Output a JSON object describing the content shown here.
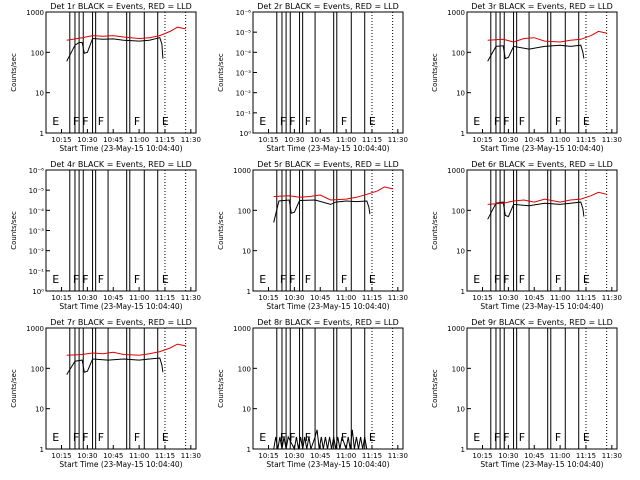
{
  "chart_data": [
    {
      "type": "line",
      "title": "Det 1r  BLACK = Events, RED = LLD",
      "xlabel": "Start Time (23-May-15 10:04:40)",
      "ylabel": "Counts/sec",
      "yscale": "log",
      "ylim": [
        1,
        1000
      ],
      "yticks": [
        "1",
        "10",
        "100",
        "1000"
      ],
      "xticks": [
        "10:15",
        "10:30",
        "10:45",
        "11:00",
        "11:15",
        "11:30"
      ],
      "flags": [
        "E",
        "F",
        "F",
        "F",
        "F",
        "E"
      ],
      "series": [
        {
          "values": [
            [
              10.3,
              60
            ],
            [
              10.38,
              150
            ],
            [
              10.42,
              175
            ],
            [
              10.45,
              175
            ],
            [
              10.47,
              95
            ],
            [
              10.5,
              100
            ],
            [
              10.55,
              220
            ],
            [
              10.65,
              210
            ],
            [
              10.75,
              215
            ],
            [
              10.85,
              200
            ],
            [
              11.0,
              190
            ],
            [
              11.1,
              200
            ],
            [
              11.2,
              230
            ],
            [
              11.22,
              160
            ],
            [
              11.23,
              70
            ]
          ]
        },
        {
          "values": [
            [
              10.3,
              200
            ],
            [
              10.45,
              230
            ],
            [
              10.55,
              260
            ],
            [
              10.65,
              250
            ],
            [
              10.75,
              260
            ],
            [
              10.85,
              240
            ],
            [
              11.0,
              220
            ],
            [
              11.1,
              230
            ],
            [
              11.2,
              260
            ],
            [
              11.3,
              330
            ],
            [
              11.37,
              420
            ],
            [
              11.45,
              380
            ]
          ]
        }
      ]
    },
    {
      "type": "line",
      "title": "Det 2r  BLACK = Events, RED = LLD",
      "xlabel": "Start Time (23-May-15 10:04:40)",
      "ylabel": "Counts/sec",
      "yscale": "log",
      "yticks": [
        "10⁰",
        "10⁻¹",
        "10⁻²",
        "10⁻³",
        "10⁻⁴",
        "10⁻⁵",
        "10⁻⁶"
      ],
      "xticks": [
        "10:15",
        "10:30",
        "10:45",
        "11:00",
        "11:15",
        "11:30"
      ],
      "flags": [
        "E",
        "F",
        "F",
        "F",
        "F",
        "E"
      ],
      "series": []
    },
    {
      "type": "line",
      "title": "Det 3r  BLACK = Events, RED = LLD",
      "xlabel": "Start Time (23-May-15 10:04:40)",
      "ylabel": "Counts/sec",
      "yscale": "log",
      "ylim": [
        1,
        1000
      ],
      "yticks": [
        "1",
        "10",
        "100",
        "1000"
      ],
      "xticks": [
        "10:15",
        "10:30",
        "10:45",
        "11:00",
        "11:15",
        "11:30"
      ],
      "flags": [
        "E",
        "F",
        "F",
        "F",
        "F",
        "E"
      ],
      "series": [
        {
          "values": [
            [
              10.3,
              60
            ],
            [
              10.38,
              140
            ],
            [
              10.45,
              145
            ],
            [
              10.47,
              70
            ],
            [
              10.5,
              75
            ],
            [
              10.55,
              140
            ],
            [
              10.7,
              120
            ],
            [
              10.85,
              140
            ],
            [
              11.0,
              150
            ],
            [
              11.1,
              140
            ],
            [
              11.2,
              150
            ],
            [
              11.22,
              100
            ],
            [
              11.23,
              70
            ]
          ]
        },
        {
          "values": [
            [
              10.3,
              200
            ],
            [
              10.45,
              210
            ],
            [
              10.55,
              180
            ],
            [
              10.65,
              220
            ],
            [
              10.75,
              230
            ],
            [
              10.85,
              190
            ],
            [
              11.0,
              180
            ],
            [
              11.1,
              200
            ],
            [
              11.2,
              210
            ],
            [
              11.3,
              260
            ],
            [
              11.37,
              330
            ],
            [
              11.45,
              300
            ]
          ]
        }
      ]
    },
    {
      "type": "line",
      "title": "Det 4r  BLACK = Events, RED = LLD",
      "xlabel": "Start Time (23-May-15 10:04:40)",
      "ylabel": "Counts/sec",
      "yscale": "log",
      "yticks": [
        "10⁰",
        "10⁻¹",
        "10⁻²",
        "10⁻³",
        "10⁻⁴",
        "10⁻⁵",
        "10⁻⁶"
      ],
      "xticks": [
        "10:15",
        "10:30",
        "10:45",
        "11:00",
        "11:15",
        "11:30"
      ],
      "flags": [
        "E",
        "F",
        "F",
        "F",
        "F",
        "E"
      ],
      "series": []
    },
    {
      "type": "line",
      "title": "Det 5r  BLACK = Events, RED = LLD",
      "xlabel": "Start Time (23-May-15 10:04:40)",
      "ylabel": "Counts/sec",
      "yscale": "log",
      "ylim": [
        1,
        1000
      ],
      "yticks": [
        "1",
        "10",
        "100",
        "1000"
      ],
      "xticks": [
        "10:15",
        "10:30",
        "10:45",
        "11:00",
        "11:15",
        "11:30"
      ],
      "flags": [
        "E",
        "F",
        "F",
        "F",
        "F",
        "E"
      ],
      "series": [
        {
          "values": [
            [
              10.3,
              50
            ],
            [
              10.35,
              170
            ],
            [
              10.45,
              180
            ],
            [
              10.47,
              85
            ],
            [
              10.5,
              90
            ],
            [
              10.55,
              175
            ],
            [
              10.7,
              180
            ],
            [
              10.85,
              140
            ],
            [
              10.9,
              160
            ],
            [
              11.0,
              170
            ],
            [
              11.1,
              165
            ],
            [
              11.2,
              170
            ],
            [
              11.22,
              120
            ],
            [
              11.23,
              80
            ]
          ]
        },
        {
          "values": [
            [
              10.3,
              220
            ],
            [
              10.45,
              230
            ],
            [
              10.55,
              210
            ],
            [
              10.65,
              220
            ],
            [
              10.75,
              240
            ],
            [
              10.85,
              180
            ],
            [
              11.0,
              190
            ],
            [
              11.1,
              210
            ],
            [
              11.2,
              250
            ],
            [
              11.3,
              300
            ],
            [
              11.37,
              380
            ],
            [
              11.45,
              340
            ]
          ]
        }
      ]
    },
    {
      "type": "line",
      "title": "Det 6r  BLACK = Events, RED = LLD",
      "xlabel": "Start Time (23-May-15 10:04:40)",
      "ylabel": "Counts/sec",
      "yscale": "log",
      "ylim": [
        1,
        1000
      ],
      "yticks": [
        "1",
        "10",
        "100",
        "1000"
      ],
      "xticks": [
        "10:15",
        "10:30",
        "10:45",
        "11:00",
        "11:15",
        "11:30"
      ],
      "flags": [
        "E",
        "F",
        "F",
        "F",
        "F",
        "E"
      ],
      "series": [
        {
          "values": [
            [
              10.3,
              60
            ],
            [
              10.38,
              150
            ],
            [
              10.45,
              160
            ],
            [
              10.47,
              75
            ],
            [
              10.5,
              70
            ],
            [
              10.55,
              140
            ],
            [
              10.7,
              130
            ],
            [
              10.85,
              150
            ],
            [
              11.0,
              140
            ],
            [
              11.1,
              150
            ],
            [
              11.2,
              160
            ],
            [
              11.22,
              110
            ],
            [
              11.23,
              70
            ]
          ]
        },
        {
          "values": [
            [
              10.3,
              140
            ],
            [
              10.45,
              150
            ],
            [
              10.55,
              170
            ],
            [
              10.65,
              180
            ],
            [
              10.75,
              160
            ],
            [
              10.85,
              190
            ],
            [
              11.0,
              160
            ],
            [
              11.1,
              180
            ],
            [
              11.2,
              190
            ],
            [
              11.3,
              230
            ],
            [
              11.37,
              280
            ],
            [
              11.45,
              250
            ]
          ]
        }
      ]
    },
    {
      "type": "line",
      "title": "Det 7r  BLACK = Events, RED = LLD",
      "xlabel": "Start Time (23-May-15 10:04:40)",
      "ylabel": "Counts/sec",
      "yscale": "log",
      "ylim": [
        1,
        1000
      ],
      "yticks": [
        "1",
        "10",
        "100",
        "1000"
      ],
      "xticks": [
        "10:15",
        "10:30",
        "10:45",
        "11:00",
        "11:15",
        "11:30"
      ],
      "flags": [
        "E",
        "F",
        "F",
        "F",
        "F",
        "E"
      ],
      "series": [
        {
          "values": [
            [
              10.3,
              70
            ],
            [
              10.38,
              150
            ],
            [
              10.45,
              160
            ],
            [
              10.47,
              80
            ],
            [
              10.5,
              85
            ],
            [
              10.55,
              170
            ],
            [
              10.7,
              160
            ],
            [
              10.85,
              170
            ],
            [
              11.0,
              160
            ],
            [
              11.1,
              170
            ],
            [
              11.2,
              180
            ],
            [
              11.22,
              120
            ],
            [
              11.23,
              80
            ]
          ]
        },
        {
          "values": [
            [
              10.3,
              210
            ],
            [
              10.45,
              220
            ],
            [
              10.55,
              240
            ],
            [
              10.65,
              230
            ],
            [
              10.75,
              250
            ],
            [
              10.85,
              220
            ],
            [
              11.0,
              210
            ],
            [
              11.1,
              230
            ],
            [
              11.2,
              260
            ],
            [
              11.3,
              320
            ],
            [
              11.37,
              400
            ],
            [
              11.45,
              360
            ]
          ]
        }
      ]
    },
    {
      "type": "line",
      "title": "Det 8r  BLACK = Events, RED = LLD",
      "xlabel": "Start Time (23-May-15 10:04:40)",
      "ylabel": "Counts/sec",
      "yscale": "log",
      "ylim": [
        1,
        1000
      ],
      "yticks": [
        "1",
        "10",
        "100",
        "1000"
      ],
      "xticks": [
        "10:15",
        "10:30",
        "10:45",
        "11:00",
        "11:15",
        "11:30"
      ],
      "flags": [
        "E",
        "F",
        "F",
        "F",
        "F",
        "E"
      ],
      "series": [
        {
          "values": [
            [
              10.3,
              1
            ],
            [
              10.32,
              2
            ],
            [
              10.34,
              1
            ],
            [
              10.36,
              2
            ],
            [
              10.38,
              1
            ],
            [
              10.4,
              2
            ],
            [
              10.42,
              1
            ],
            [
              10.44,
              2
            ],
            [
              10.5,
              1
            ],
            [
              10.52,
              2
            ],
            [
              10.54,
              1
            ],
            [
              10.56,
              2
            ],
            [
              10.58,
              1
            ],
            [
              10.6,
              2
            ],
            [
              10.62,
              1
            ],
            [
              10.64,
              2
            ],
            [
              10.66,
              1
            ],
            [
              10.7,
              2
            ],
            [
              10.72,
              3
            ],
            [
              10.74,
              1
            ],
            [
              10.76,
              2
            ],
            [
              10.78,
              1
            ],
            [
              10.8,
              2
            ],
            [
              10.82,
              1
            ],
            [
              10.84,
              2
            ],
            [
              10.86,
              1
            ],
            [
              10.88,
              2
            ],
            [
              10.9,
              1
            ],
            [
              10.92,
              2
            ],
            [
              10.94,
              1
            ],
            [
              10.96,
              2
            ],
            [
              11.0,
              1
            ],
            [
              11.02,
              2
            ],
            [
              11.04,
              1
            ],
            [
              11.06,
              3
            ],
            [
              11.08,
              1
            ],
            [
              11.1,
              2
            ],
            [
              11.12,
              1
            ],
            [
              11.14,
              2
            ],
            [
              11.16,
              1
            ],
            [
              11.18,
              2
            ],
            [
              11.2,
              1
            ]
          ]
        }
      ]
    },
    {
      "type": "line",
      "title": "Det 9r  BLACK = Events, RED = LLD",
      "xlabel": "Start Time (23-May-15 10:04:40)",
      "ylabel": "Counts/sec",
      "yscale": "log",
      "ylim": [
        1,
        1000
      ],
      "yticks": [
        "1",
        "10",
        "100",
        "1000"
      ],
      "xticks": [
        "10:15",
        "10:30",
        "10:45",
        "11:00",
        "11:15",
        "11:30"
      ],
      "flags": [
        "E",
        "F",
        "F",
        "F",
        "F",
        "E"
      ],
      "series": []
    }
  ]
}
